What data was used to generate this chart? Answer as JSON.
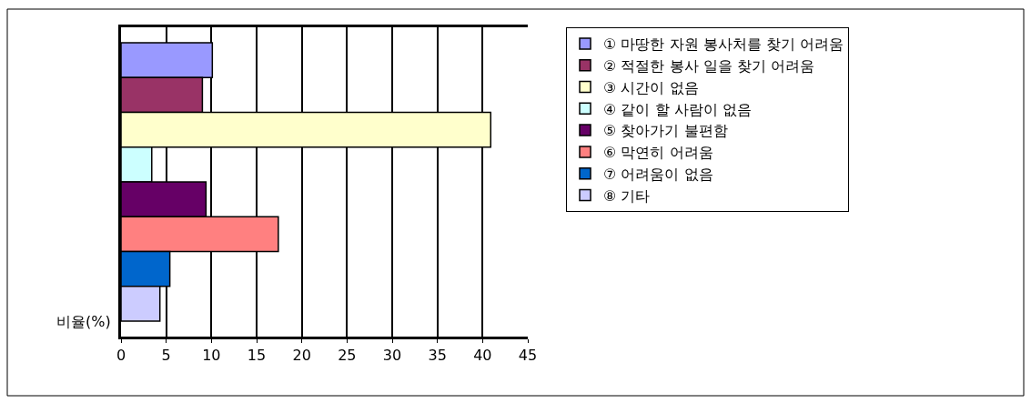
{
  "chart_data": {
    "type": "bar",
    "orientation": "horizontal",
    "ylabel": "비율(%)",
    "categories": [
      null
    ],
    "series": [
      {
        "name": "① 마땅한 자원 봉사처를 찾기 어려움",
        "color": "#9999ff",
        "values": [
          10.1
        ]
      },
      {
        "name": "② 적절한 봉사 일을 찾기 어려움",
        "color": "#993366",
        "values": [
          9.0
        ]
      },
      {
        "name": "③ 시간이 없음",
        "color": "#ffffcc",
        "values": [
          40.9
        ]
      },
      {
        "name": "④ 같이 할 사람이 없음",
        "color": "#ccffff",
        "values": [
          3.4
        ]
      },
      {
        "name": "⑤ 찾아가기 불편함",
        "color": "#660066",
        "values": [
          9.4
        ]
      },
      {
        "name": "⑥ 막연히 어려움",
        "color": "#ff8080",
        "values": [
          17.4
        ]
      },
      {
        "name": "⑦ 어려움이 없음",
        "color": "#0066cc",
        "values": [
          5.4
        ]
      },
      {
        "name": "⑧ 기타",
        "color": "#ccccff",
        "values": [
          4.3
        ]
      }
    ],
    "xlim": [
      0,
      45
    ],
    "xticks": [
      0,
      5,
      10,
      15,
      20,
      25,
      30,
      35,
      40,
      45
    ],
    "grid": "x",
    "legend": "right"
  }
}
